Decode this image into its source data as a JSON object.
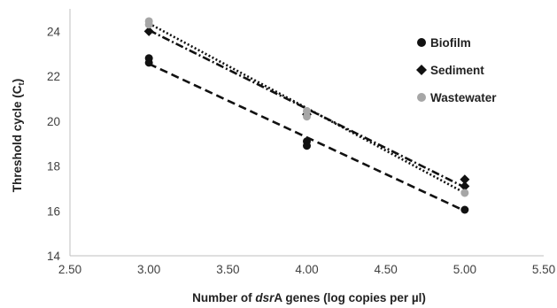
{
  "chart_data": {
    "type": "scatter",
    "xlabel_parts": [
      "Number of ",
      "dsr",
      "A genes (log copies per µl)"
    ],
    "ylabel_parts": [
      "Threshold cycle (C",
      "t",
      ")"
    ],
    "xlim": [
      2.5,
      5.5
    ],
    "ylim": [
      14,
      25
    ],
    "x_ticks": [
      "2.50",
      "3.00",
      "3.50",
      "4.00",
      "4.50",
      "5.00",
      "5.50"
    ],
    "x_tick_values": [
      2.5,
      3.0,
      3.5,
      4.0,
      4.5,
      5.0,
      5.5
    ],
    "y_ticks": [
      "14",
      "16",
      "18",
      "20",
      "22",
      "24"
    ],
    "y_tick_values": [
      14,
      16,
      18,
      20,
      22,
      24
    ],
    "grid": false,
    "legend_position": "right",
    "series": [
      {
        "name": "Biofilm",
        "marker": "circle",
        "color": "#111111",
        "line_style": "dashed",
        "points": [
          [
            3.0,
            22.8
          ],
          [
            3.0,
            22.6
          ],
          [
            4.0,
            19.1
          ],
          [
            4.0,
            18.9
          ],
          [
            5.0,
            16.05
          ]
        ],
        "trend": [
          [
            3.0,
            22.55
          ],
          [
            5.0,
            16.0
          ]
        ]
      },
      {
        "name": "Sediment",
        "marker": "diamond",
        "color": "#111111",
        "line_style": "dash-dot",
        "points": [
          [
            3.0,
            24.0
          ],
          [
            4.0,
            20.3
          ],
          [
            5.0,
            17.4
          ],
          [
            5.0,
            17.1
          ]
        ],
        "trend": [
          [
            3.0,
            24.05
          ],
          [
            5.0,
            17.05
          ]
        ]
      },
      {
        "name": "Wastewater",
        "marker": "circle",
        "color": "#a6a6a6",
        "line_style": "dotted",
        "points": [
          [
            3.0,
            24.45
          ],
          [
            3.0,
            24.3
          ],
          [
            4.0,
            20.45
          ],
          [
            4.0,
            20.2
          ],
          [
            5.0,
            16.8
          ]
        ],
        "trend": [
          [
            3.0,
            24.35
          ],
          [
            5.0,
            16.8
          ]
        ]
      }
    ]
  }
}
